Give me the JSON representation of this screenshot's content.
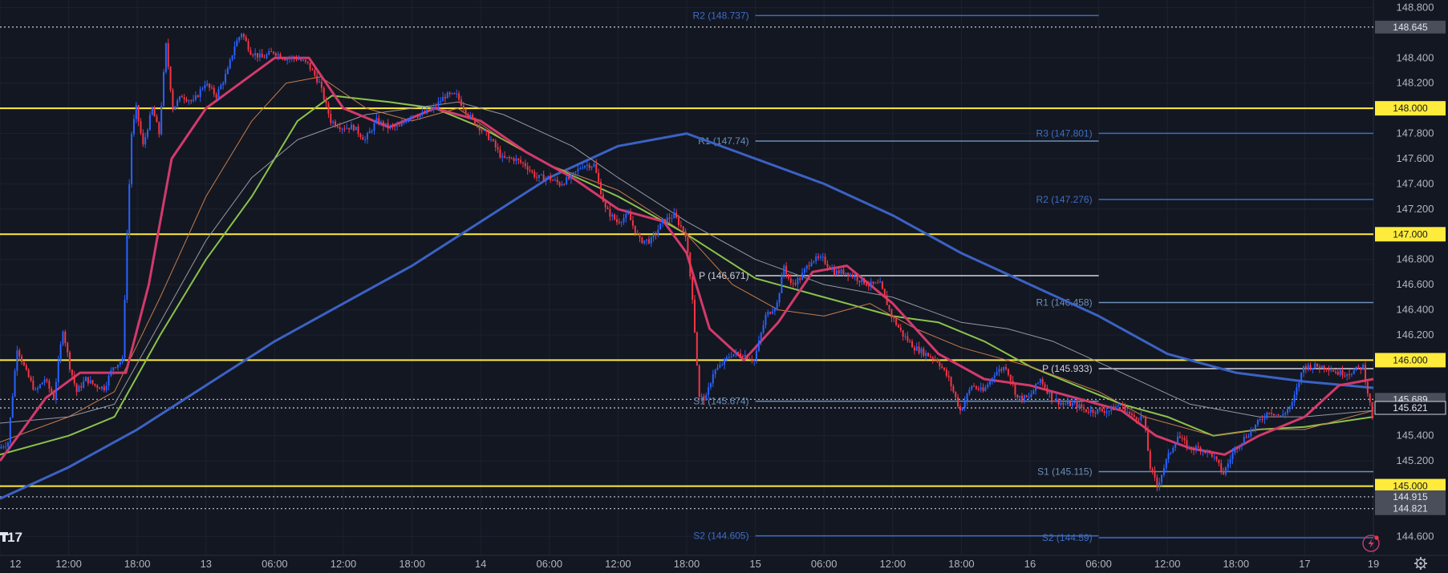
{
  "chart_data": {
    "type": "candlestick",
    "instrument_timeframe": "hourly",
    "grid": true,
    "x_tick_labels": [
      "12",
      "12:00",
      "18:00",
      "13",
      "06:00",
      "12:00",
      "18:00",
      "14",
      "06:00",
      "12:00",
      "18:00",
      "15",
      "06:00",
      "12:00",
      "18:00",
      "16",
      "06:00",
      "12:00",
      "18:00",
      "17",
      "19"
    ],
    "y_tick_labels": [
      "148.800",
      "148.400",
      "148.200",
      "147.800",
      "147.600",
      "147.400",
      "147.200",
      "146.800",
      "146.600",
      "146.400",
      "146.200",
      "145.400",
      "145.200",
      "144.600"
    ],
    "ylim": [
      144.45,
      148.86
    ],
    "horizontal_levels": [
      {
        "value": 148.0,
        "label": "148.000",
        "color": "#ffeb3b"
      },
      {
        "value": 147.0,
        "label": "147.000",
        "color": "#ffeb3b"
      },
      {
        "value": 146.0,
        "label": "146.000",
        "color": "#ffeb3b"
      },
      {
        "value": 145.0,
        "label": "145.000",
        "color": "#ffeb3b"
      }
    ],
    "dotted_levels": [
      {
        "value": 148.645,
        "label": "148.645"
      },
      {
        "value": 145.689,
        "label": "145.689"
      },
      {
        "value": 145.621,
        "label": "145.621"
      },
      {
        "value": 144.915,
        "label": "144.915"
      },
      {
        "value": 144.821,
        "label": "144.821"
      }
    ],
    "pivot_levels": [
      {
        "label": "R2 (148.737)",
        "value": 148.737,
        "t_start": 33,
        "t_end": 48,
        "color": "#3d6dc4"
      },
      {
        "label": "R1 (147.74)",
        "value": 147.74,
        "t_start": 33,
        "t_end": 48,
        "color": "#6b8fb8"
      },
      {
        "label": "P (146.671)",
        "value": 146.671,
        "t_start": 33,
        "t_end": 48,
        "color": "#d1d4dc"
      },
      {
        "label": "S1 (145.674)",
        "value": 145.674,
        "t_start": 33,
        "t_end": 48,
        "color": "#6b8fb8"
      },
      {
        "label": "S2 (144.605)",
        "value": 144.605,
        "t_start": 33,
        "t_end": 48,
        "color": "#3d6dc4"
      },
      {
        "label": "R3 (147.801)",
        "value": 147.801,
        "t_start": 48,
        "t_end": 60,
        "color": "#3d6dc4"
      },
      {
        "label": "R2 (147.276)",
        "value": 147.276,
        "t_start": 48,
        "t_end": 60,
        "color": "#3d6dc4"
      },
      {
        "label": "R1 (146.458)",
        "value": 146.458,
        "t_start": 48,
        "t_end": 60,
        "color": "#6b8fb8"
      },
      {
        "label": "P (145.933)",
        "value": 145.933,
        "t_start": 48,
        "t_end": 60,
        "color": "#d1d4dc"
      },
      {
        "label": "S1 (145.115)",
        "value": 145.115,
        "t_start": 48,
        "t_end": 60,
        "color": "#6b8fb8"
      },
      {
        "label": "S2 (144.59)",
        "value": 144.59,
        "t_start": 48,
        "t_end": 60,
        "color": "#3d6dc4"
      }
    ],
    "price_path": [
      [
        0,
        145.3
      ],
      [
        0.4,
        145.35
      ],
      [
        0.8,
        146.1
      ],
      [
        1.2,
        145.9
      ],
      [
        1.6,
        145.75
      ],
      [
        2.0,
        145.85
      ],
      [
        2.4,
        145.7
      ],
      [
        2.8,
        146.25
      ],
      [
        3.1,
        145.95
      ],
      [
        3.4,
        145.75
      ],
      [
        3.8,
        145.85
      ],
      [
        4.2,
        145.8
      ],
      [
        4.6,
        145.78
      ],
      [
        5.0,
        145.95
      ],
      [
        5.4,
        146.0
      ],
      [
        5.6,
        147.0
      ],
      [
        5.8,
        147.8
      ],
      [
        6.0,
        148.0
      ],
      [
        6.3,
        147.7
      ],
      [
        6.7,
        148.0
      ],
      [
        7.0,
        147.8
      ],
      [
        7.3,
        148.5
      ],
      [
        7.6,
        148.0
      ],
      [
        8.0,
        148.1
      ],
      [
        8.5,
        148.05
      ],
      [
        9.0,
        148.2
      ],
      [
        9.5,
        148.1
      ],
      [
        10.0,
        148.3
      ],
      [
        10.3,
        148.5
      ],
      [
        10.6,
        148.6
      ],
      [
        11.0,
        148.45
      ],
      [
        11.5,
        148.4
      ],
      [
        12.0,
        148.45
      ],
      [
        12.5,
        148.4
      ],
      [
        13.0,
        148.4
      ],
      [
        13.5,
        148.35
      ],
      [
        14.0,
        148.2
      ],
      [
        14.5,
        147.9
      ],
      [
        15.0,
        147.85
      ],
      [
        15.5,
        147.85
      ],
      [
        16.0,
        147.75
      ],
      [
        16.5,
        147.9
      ],
      [
        17.0,
        147.85
      ],
      [
        17.5,
        147.85
      ],
      [
        18.0,
        147.95
      ],
      [
        18.5,
        147.95
      ],
      [
        19.0,
        148.0
      ],
      [
        19.5,
        148.1
      ],
      [
        20.0,
        148.1
      ],
      [
        20.5,
        147.95
      ],
      [
        21.0,
        147.85
      ],
      [
        21.5,
        147.75
      ],
      [
        22.0,
        147.6
      ],
      [
        22.5,
        147.6
      ],
      [
        23.0,
        147.55
      ],
      [
        23.5,
        147.45
      ],
      [
        24.0,
        147.45
      ],
      [
        24.5,
        147.4
      ],
      [
        25.0,
        147.45
      ],
      [
        25.5,
        147.55
      ],
      [
        26.0,
        147.55
      ],
      [
        26.5,
        147.2
      ],
      [
        27.0,
        147.1
      ],
      [
        27.5,
        147.15
      ],
      [
        28.0,
        146.95
      ],
      [
        28.5,
        146.95
      ],
      [
        29.0,
        147.1
      ],
      [
        29.5,
        147.15
      ],
      [
        30.0,
        147.0
      ],
      [
        30.3,
        146.5
      ],
      [
        30.6,
        145.7
      ],
      [
        30.9,
        145.7
      ],
      [
        31.2,
        145.9
      ],
      [
        31.5,
        145.95
      ],
      [
        32.0,
        146.05
      ],
      [
        32.5,
        146.05
      ],
      [
        33.0,
        146.0
      ],
      [
        33.5,
        146.35
      ],
      [
        34.0,
        146.45
      ],
      [
        34.3,
        146.75
      ],
      [
        34.6,
        146.6
      ],
      [
        35.0,
        146.65
      ],
      [
        35.5,
        146.8
      ],
      [
        36.0,
        146.8
      ],
      [
        36.5,
        146.7
      ],
      [
        37.0,
        146.7
      ],
      [
        37.5,
        146.65
      ],
      [
        38.0,
        146.6
      ],
      [
        38.5,
        146.6
      ],
      [
        39.0,
        146.35
      ],
      [
        39.5,
        146.2
      ],
      [
        40.0,
        146.1
      ],
      [
        40.5,
        146.05
      ],
      [
        41.0,
        146.0
      ],
      [
        41.5,
        145.85
      ],
      [
        42.0,
        145.6
      ],
      [
        42.5,
        145.8
      ],
      [
        43.0,
        145.75
      ],
      [
        43.5,
        145.9
      ],
      [
        44.0,
        145.95
      ],
      [
        44.5,
        145.7
      ],
      [
        45.0,
        145.7
      ],
      [
        45.5,
        145.85
      ],
      [
        46.0,
        145.7
      ],
      [
        46.5,
        145.65
      ],
      [
        47.0,
        145.65
      ],
      [
        47.5,
        145.6
      ],
      [
        48.0,
        145.6
      ],
      [
        48.5,
        145.6
      ],
      [
        49.0,
        145.65
      ],
      [
        49.5,
        145.55
      ],
      [
        50.0,
        145.55
      ],
      [
        50.3,
        145.15
      ],
      [
        50.6,
        145.0
      ],
      [
        51.0,
        145.2
      ],
      [
        51.5,
        145.4
      ],
      [
        52.0,
        145.3
      ],
      [
        52.5,
        145.3
      ],
      [
        53.0,
        145.25
      ],
      [
        53.5,
        145.1
      ],
      [
        54.0,
        145.3
      ],
      [
        54.5,
        145.4
      ],
      [
        55.0,
        145.5
      ],
      [
        55.5,
        145.6
      ],
      [
        56.0,
        145.55
      ],
      [
        56.5,
        145.65
      ],
      [
        57.0,
        145.95
      ],
      [
        57.5,
        145.95
      ],
      [
        58.0,
        145.95
      ],
      [
        58.5,
        145.9
      ],
      [
        59.0,
        145.9
      ],
      [
        59.6,
        145.95
      ],
      [
        60.0,
        145.55
      ]
    ],
    "moving_averages": [
      {
        "name": "",
        "color": "#3b62c4",
        "width": 3,
        "points": [
          [
            0,
            144.9
          ],
          [
            3,
            145.15
          ],
          [
            6,
            145.45
          ],
          [
            9,
            145.8
          ],
          [
            12,
            146.15
          ],
          [
            15,
            146.45
          ],
          [
            18,
            146.75
          ],
          [
            21,
            147.1
          ],
          [
            24,
            147.45
          ],
          [
            27,
            147.7
          ],
          [
            30,
            147.8
          ],
          [
            33,
            147.6
          ],
          [
            36,
            147.4
          ],
          [
            39,
            147.15
          ],
          [
            42,
            146.85
          ],
          [
            45,
            146.6
          ],
          [
            48,
            146.35
          ],
          [
            51,
            146.05
          ],
          [
            54,
            145.9
          ],
          [
            57,
            145.83
          ],
          [
            60,
            145.78
          ]
        ]
      },
      {
        "name": "",
        "color": "#8bc34a",
        "width": 2,
        "points": [
          [
            0,
            145.25
          ],
          [
            3,
            145.4
          ],
          [
            5,
            145.55
          ],
          [
            7,
            146.2
          ],
          [
            9,
            146.8
          ],
          [
            11,
            147.3
          ],
          [
            13,
            147.9
          ],
          [
            14.5,
            148.1
          ],
          [
            17,
            148.05
          ],
          [
            19,
            148.0
          ],
          [
            21,
            147.85
          ],
          [
            24,
            147.55
          ],
          [
            27,
            147.3
          ],
          [
            30,
            147.0
          ],
          [
            33,
            146.65
          ],
          [
            36,
            146.5
          ],
          [
            39,
            146.35
          ],
          [
            41,
            146.3
          ],
          [
            43,
            146.15
          ],
          [
            45,
            145.95
          ],
          [
            47,
            145.8
          ],
          [
            49,
            145.65
          ],
          [
            51,
            145.55
          ],
          [
            53,
            145.4
          ],
          [
            55,
            145.45
          ],
          [
            57,
            145.47
          ],
          [
            60,
            145.55
          ]
        ]
      },
      {
        "name": "",
        "color": "#9598a1",
        "width": 1,
        "points": [
          [
            0,
            145.5
          ],
          [
            3,
            145.55
          ],
          [
            5,
            145.65
          ],
          [
            7,
            146.3
          ],
          [
            9,
            146.95
          ],
          [
            11,
            147.45
          ],
          [
            13,
            147.75
          ],
          [
            16,
            147.95
          ],
          [
            18,
            148.0
          ],
          [
            20,
            148.05
          ],
          [
            22,
            147.95
          ],
          [
            25,
            147.7
          ],
          [
            27,
            147.45
          ],
          [
            30,
            147.1
          ],
          [
            33,
            146.8
          ],
          [
            36,
            146.6
          ],
          [
            39,
            146.5
          ],
          [
            42,
            146.3
          ],
          [
            44,
            146.25
          ],
          [
            46,
            146.15
          ],
          [
            49,
            145.9
          ],
          [
            52,
            145.65
          ],
          [
            55,
            145.55
          ],
          [
            57,
            145.55
          ],
          [
            60,
            145.6
          ]
        ]
      },
      {
        "name": "",
        "color": "#c77d4a",
        "width": 1,
        "points": [
          [
            0,
            145.35
          ],
          [
            3,
            145.55
          ],
          [
            5,
            145.75
          ],
          [
            7,
            146.5
          ],
          [
            9,
            147.3
          ],
          [
            11,
            147.9
          ],
          [
            12.5,
            148.2
          ],
          [
            14,
            148.25
          ],
          [
            16,
            148.0
          ],
          [
            18,
            147.9
          ],
          [
            20,
            148.0
          ],
          [
            22,
            147.75
          ],
          [
            24,
            147.55
          ],
          [
            27,
            147.35
          ],
          [
            30,
            147.0
          ],
          [
            32,
            146.6
          ],
          [
            34,
            146.4
          ],
          [
            36,
            146.35
          ],
          [
            38,
            146.45
          ],
          [
            40,
            146.25
          ],
          [
            42,
            146.1
          ],
          [
            45,
            145.95
          ],
          [
            48,
            145.75
          ],
          [
            50,
            145.55
          ],
          [
            53,
            145.4
          ],
          [
            55,
            145.45
          ],
          [
            57,
            145.45
          ],
          [
            59,
            145.55
          ],
          [
            60,
            145.6
          ]
        ]
      },
      {
        "name": "",
        "color": "#d23a6b",
        "width": 3,
        "points": [
          [
            0,
            145.2
          ],
          [
            2,
            145.7
          ],
          [
            3.5,
            145.9
          ],
          [
            5.5,
            145.9
          ],
          [
            6.5,
            146.6
          ],
          [
            7.5,
            147.6
          ],
          [
            9,
            148.0
          ],
          [
            10.5,
            148.2
          ],
          [
            12,
            148.4
          ],
          [
            13.5,
            148.4
          ],
          [
            15,
            148.0
          ],
          [
            17,
            147.85
          ],
          [
            19,
            148.0
          ],
          [
            21,
            147.9
          ],
          [
            23,
            147.65
          ],
          [
            25,
            147.45
          ],
          [
            27,
            147.2
          ],
          [
            29,
            147.1
          ],
          [
            30,
            146.85
          ],
          [
            31,
            146.25
          ],
          [
            32.5,
            146.0
          ],
          [
            34,
            146.3
          ],
          [
            35.5,
            146.7
          ],
          [
            37,
            146.75
          ],
          [
            39,
            146.45
          ],
          [
            41,
            146.05
          ],
          [
            43,
            145.85
          ],
          [
            45,
            145.8
          ],
          [
            47,
            145.7
          ],
          [
            49,
            145.6
          ],
          [
            50.5,
            145.4
          ],
          [
            52,
            145.3
          ],
          [
            53.5,
            145.25
          ],
          [
            55,
            145.4
          ],
          [
            57,
            145.55
          ],
          [
            58.5,
            145.8
          ],
          [
            60,
            145.85
          ]
        ]
      }
    ]
  },
  "branding": {
    "logo_icon": "tradingview-logo-icon",
    "logo_text": "17"
  },
  "controls": {
    "settings_icon": "gear-icon",
    "alert_icon": "lightning-icon"
  }
}
